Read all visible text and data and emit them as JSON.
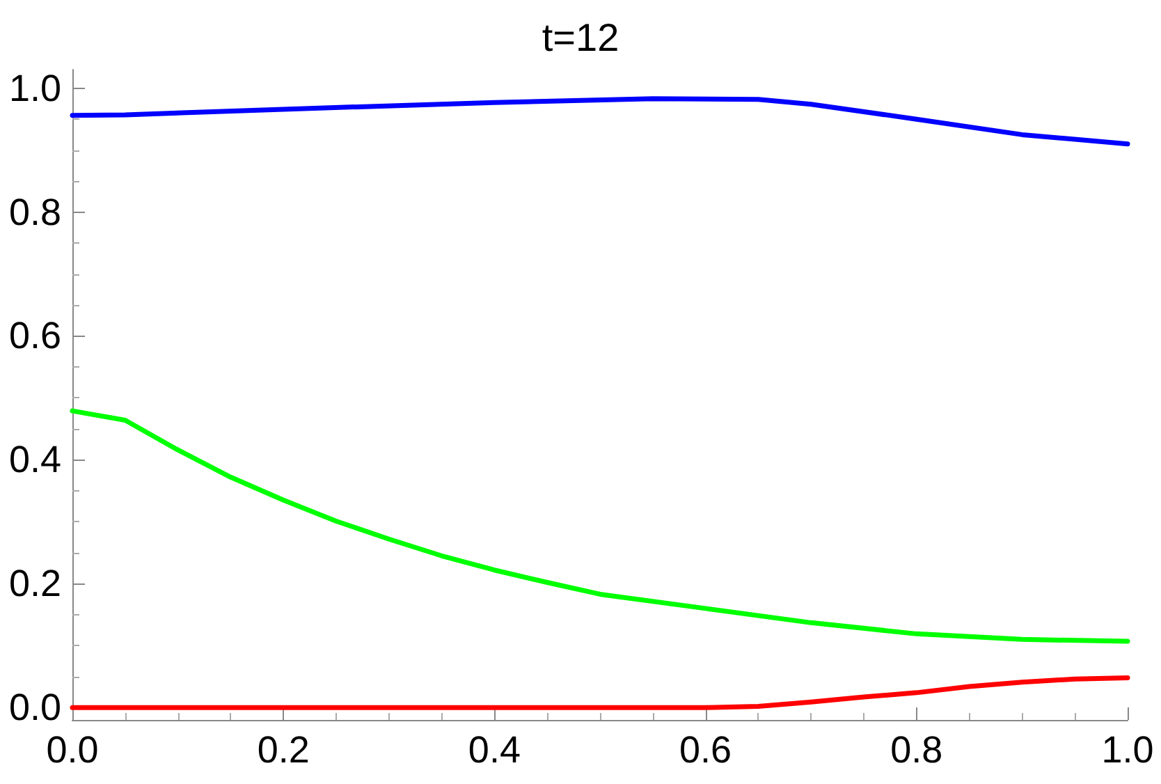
{
  "chart_data": {
    "type": "line",
    "title": "t=12",
    "xlim": [
      0,
      1
    ],
    "ylim": [
      -0.02,
      1.03
    ],
    "xticks": [
      {
        "value": 0,
        "label": "0.0"
      },
      0.2,
      0.4,
      0.6,
      0.8,
      {
        "value": 1,
        "label": "1.0"
      }
    ],
    "yticks": [
      {
        "value": 0,
        "label": "0.0"
      },
      0.2,
      0.4,
      0.6,
      0.8,
      {
        "value": 1,
        "label": "1.0"
      }
    ],
    "grid": false,
    "marker": "none",
    "line_style": "solid",
    "series": [
      {
        "color": "#0000ff",
        "x": [
          0,
          0.05,
          0.2,
          0.4,
          0.55,
          0.65,
          0.7,
          0.8,
          0.9,
          1
        ],
        "values": [
          0.956,
          0.957,
          0.966,
          0.977,
          0.983,
          0.982,
          0.974,
          0.95,
          0.925,
          0.91
        ]
      },
      {
        "color": "#00ff00",
        "x": [
          0,
          0.05,
          0.1,
          0.15,
          0.2,
          0.25,
          0.3,
          0.35,
          0.4,
          0.45,
          0.5,
          0.6,
          0.7,
          0.8,
          0.9,
          1
        ],
        "values": [
          0.479,
          0.464,
          0.416,
          0.372,
          0.335,
          0.301,
          0.272,
          0.245,
          0.222,
          0.202,
          0.183,
          0.16,
          0.137,
          0.119,
          0.11,
          0.107
        ]
      },
      {
        "color": "#ff0000",
        "x": [
          0,
          0.2,
          0.4,
          0.6,
          0.65,
          0.7,
          0.75,
          0.8,
          0.85,
          0.9,
          0.95,
          1
        ],
        "values": [
          0,
          0,
          0,
          0,
          0.002,
          0.009,
          0.017,
          0.024,
          0.034,
          0.041,
          0.046,
          0.048
        ]
      }
    ]
  }
}
